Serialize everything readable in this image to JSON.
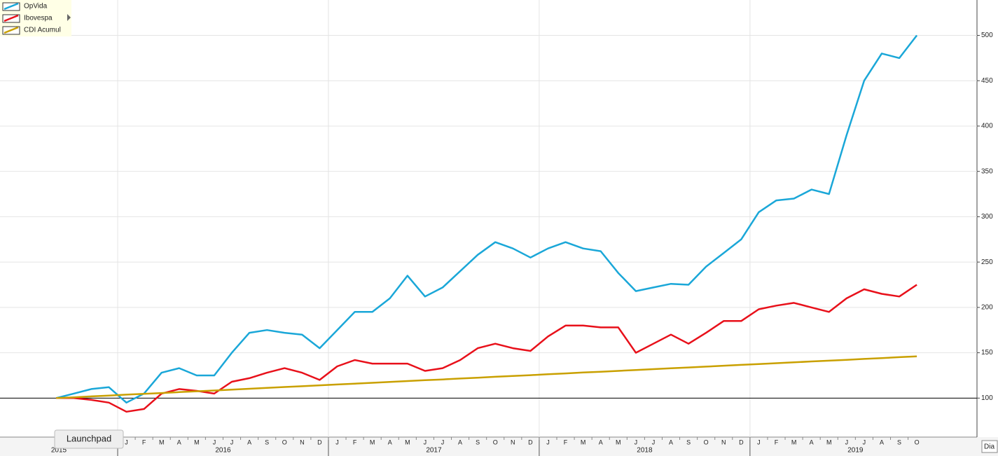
{
  "chart_data": {
    "type": "line",
    "x": [
      "2015-09",
      "2015-10",
      "2015-11",
      "2015-12",
      "2016-01",
      "2016-02",
      "2016-03",
      "2016-04",
      "2016-05",
      "2016-06",
      "2016-07",
      "2016-08",
      "2016-09",
      "2016-10",
      "2016-11",
      "2016-12",
      "2017-01",
      "2017-02",
      "2017-03",
      "2017-04",
      "2017-05",
      "2017-06",
      "2017-07",
      "2017-08",
      "2017-09",
      "2017-10",
      "2017-11",
      "2017-12",
      "2018-01",
      "2018-02",
      "2018-03",
      "2018-04",
      "2018-05",
      "2018-06",
      "2018-07",
      "2018-08",
      "2018-09",
      "2018-10",
      "2018-11",
      "2018-12",
      "2019-01",
      "2019-02",
      "2019-03",
      "2019-04",
      "2019-05",
      "2019-06",
      "2019-07",
      "2019-08",
      "2019-09",
      "2019-10"
    ],
    "series": [
      {
        "name": "OpVida",
        "color": "#1aa7d8",
        "values": [
          100,
          105,
          110,
          112,
          95,
          105,
          128,
          133,
          125,
          125,
          150,
          172,
          175,
          172,
          170,
          155,
          175,
          195,
          195,
          210,
          235,
          212,
          222,
          240,
          258,
          272,
          265,
          255,
          265,
          272,
          265,
          262,
          238,
          218,
          222,
          226,
          225,
          245,
          260,
          275,
          305,
          318,
          320,
          330,
          325,
          390,
          450,
          480,
          475,
          500
        ]
      },
      {
        "name": "Ibovespa",
        "color": "#e8101a",
        "values": [
          100,
          100,
          98,
          95,
          85,
          88,
          105,
          110,
          108,
          105,
          118,
          122,
          128,
          133,
          128,
          120,
          135,
          142,
          138,
          138,
          138,
          130,
          133,
          142,
          155,
          160,
          155,
          152,
          168,
          180,
          180,
          178,
          178,
          150,
          160,
          170,
          160,
          172,
          185,
          185,
          198,
          202,
          205,
          200,
          195,
          210,
          220,
          215,
          212,
          225
        ]
      },
      {
        "name": "CDI Acumul",
        "color": "#c9a000",
        "values": [
          100,
          100.9,
          101.9,
          102.8,
          103.8,
          104.7,
          105.6,
          106.6,
          107.5,
          108.4,
          109.4,
          110.3,
          111.3,
          112.2,
          113.1,
          114.1,
          115,
          115.9,
          116.9,
          117.8,
          118.8,
          119.7,
          120.6,
          121.6,
          122.5,
          123.5,
          124.4,
          125.3,
          126.3,
          127.2,
          128.2,
          129.1,
          130,
          131,
          131.9,
          132.9,
          133.8,
          134.7,
          135.7,
          136.6,
          137.6,
          138.5,
          139.4,
          140.4,
          141.3,
          142.2,
          143.2,
          144.1,
          145.1,
          146
        ]
      }
    ],
    "ylim": [
      57,
      539
    ],
    "yticks": [
      100,
      150,
      200,
      250,
      300,
      350,
      400,
      450,
      500
    ],
    "reference_line": 100,
    "grid": true,
    "legend": "top-left",
    "xticks": [
      {
        "value": "2016-01",
        "label": "J"
      },
      {
        "value": "2016-02",
        "label": "F"
      },
      {
        "value": "2016-03",
        "label": "M"
      },
      {
        "value": "2016-04",
        "label": "A"
      },
      {
        "value": "2016-05",
        "label": "M"
      },
      {
        "value": "2016-06",
        "label": "J"
      },
      {
        "value": "2016-07",
        "label": "J"
      },
      {
        "value": "2016-08",
        "label": "A"
      },
      {
        "value": "2016-09",
        "label": "S"
      },
      {
        "value": "2016-10",
        "label": "O"
      },
      {
        "value": "2016-11",
        "label": "N"
      },
      {
        "value": "2016-12",
        "label": "D"
      },
      {
        "value": "2017-01",
        "label": "J"
      },
      {
        "value": "2017-02",
        "label": "F"
      },
      {
        "value": "2017-03",
        "label": "M"
      },
      {
        "value": "2017-04",
        "label": "A"
      },
      {
        "value": "2017-05",
        "label": "M"
      },
      {
        "value": "2017-06",
        "label": "J"
      },
      {
        "value": "2017-07",
        "label": "J"
      },
      {
        "value": "2017-08",
        "label": "A"
      },
      {
        "value": "2017-09",
        "label": "S"
      },
      {
        "value": "2017-10",
        "label": "O"
      },
      {
        "value": "2017-11",
        "label": "N"
      },
      {
        "value": "2017-12",
        "label": "D"
      },
      {
        "value": "2018-01",
        "label": "J"
      },
      {
        "value": "2018-02",
        "label": "F"
      },
      {
        "value": "2018-03",
        "label": "M"
      },
      {
        "value": "2018-04",
        "label": "A"
      },
      {
        "value": "2018-05",
        "label": "M"
      },
      {
        "value": "2018-06",
        "label": "J"
      },
      {
        "value": "2018-07",
        "label": "J"
      },
      {
        "value": "2018-08",
        "label": "A"
      },
      {
        "value": "2018-09",
        "label": "S"
      },
      {
        "value": "2018-10",
        "label": "O"
      },
      {
        "value": "2018-11",
        "label": "N"
      },
      {
        "value": "2018-12",
        "label": "D"
      },
      {
        "value": "2019-01",
        "label": "J"
      },
      {
        "value": "2019-02",
        "label": "F"
      },
      {
        "value": "2019-03",
        "label": "M"
      },
      {
        "value": "2019-04",
        "label": "A"
      },
      {
        "value": "2019-05",
        "label": "M"
      },
      {
        "value": "2019-06",
        "label": "J"
      },
      {
        "value": "2019-07",
        "label": "J"
      },
      {
        "value": "2019-08",
        "label": "A"
      },
      {
        "value": "2019-09",
        "label": "S"
      },
      {
        "value": "2019-10",
        "label": "O"
      }
    ],
    "years": [
      "2015",
      "2016",
      "2017",
      "2018",
      "2019"
    ]
  },
  "tooltip": "Launchpad",
  "period_button": "Dia"
}
